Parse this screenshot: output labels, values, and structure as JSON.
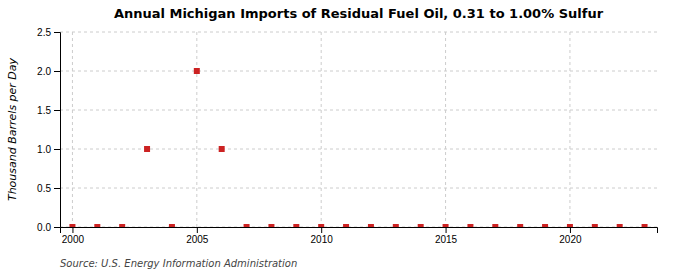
{
  "chart_data": {
    "type": "scatter",
    "title": "Annual Michigan Imports of Residual Fuel Oil, 0.31 to 1.00% Sulfur",
    "y_label": "Thousand Barrels per Day",
    "annotation": "Source: U.S. Energy Information Administration",
    "x": [
      2000,
      2001,
      2002,
      2003,
      2004,
      2005,
      2006,
      2007,
      2008,
      2009,
      2010,
      2011,
      2012,
      2013,
      2014,
      2015,
      2016,
      2017,
      2018,
      2019,
      2020,
      2021,
      2022,
      2023
    ],
    "values": [
      0.0,
      0.0,
      0.0,
      1.0,
      0.0,
      2.0,
      1.0,
      0.0,
      0.0,
      0.0,
      0.0,
      0.0,
      0.0,
      0.0,
      0.0,
      0.0,
      0.0,
      0.0,
      0.0,
      0.0,
      0.0,
      0.0,
      0.0,
      0.0
    ],
    "color": "#cc2222",
    "marker": "square",
    "xlim": [
      1999.5,
      2023.5
    ],
    "ylim": [
      0.0,
      2.5
    ],
    "xticks": [
      2000,
      2005,
      2010,
      2015,
      2020
    ],
    "yticks": [
      {
        "value": 0.0,
        "label": "0.0"
      },
      0.5,
      {
        "value": 1.0,
        "label": "1.0"
      },
      1.5,
      {
        "value": 2.0,
        "label": "2.0"
      },
      2.5
    ],
    "grid": true
  }
}
